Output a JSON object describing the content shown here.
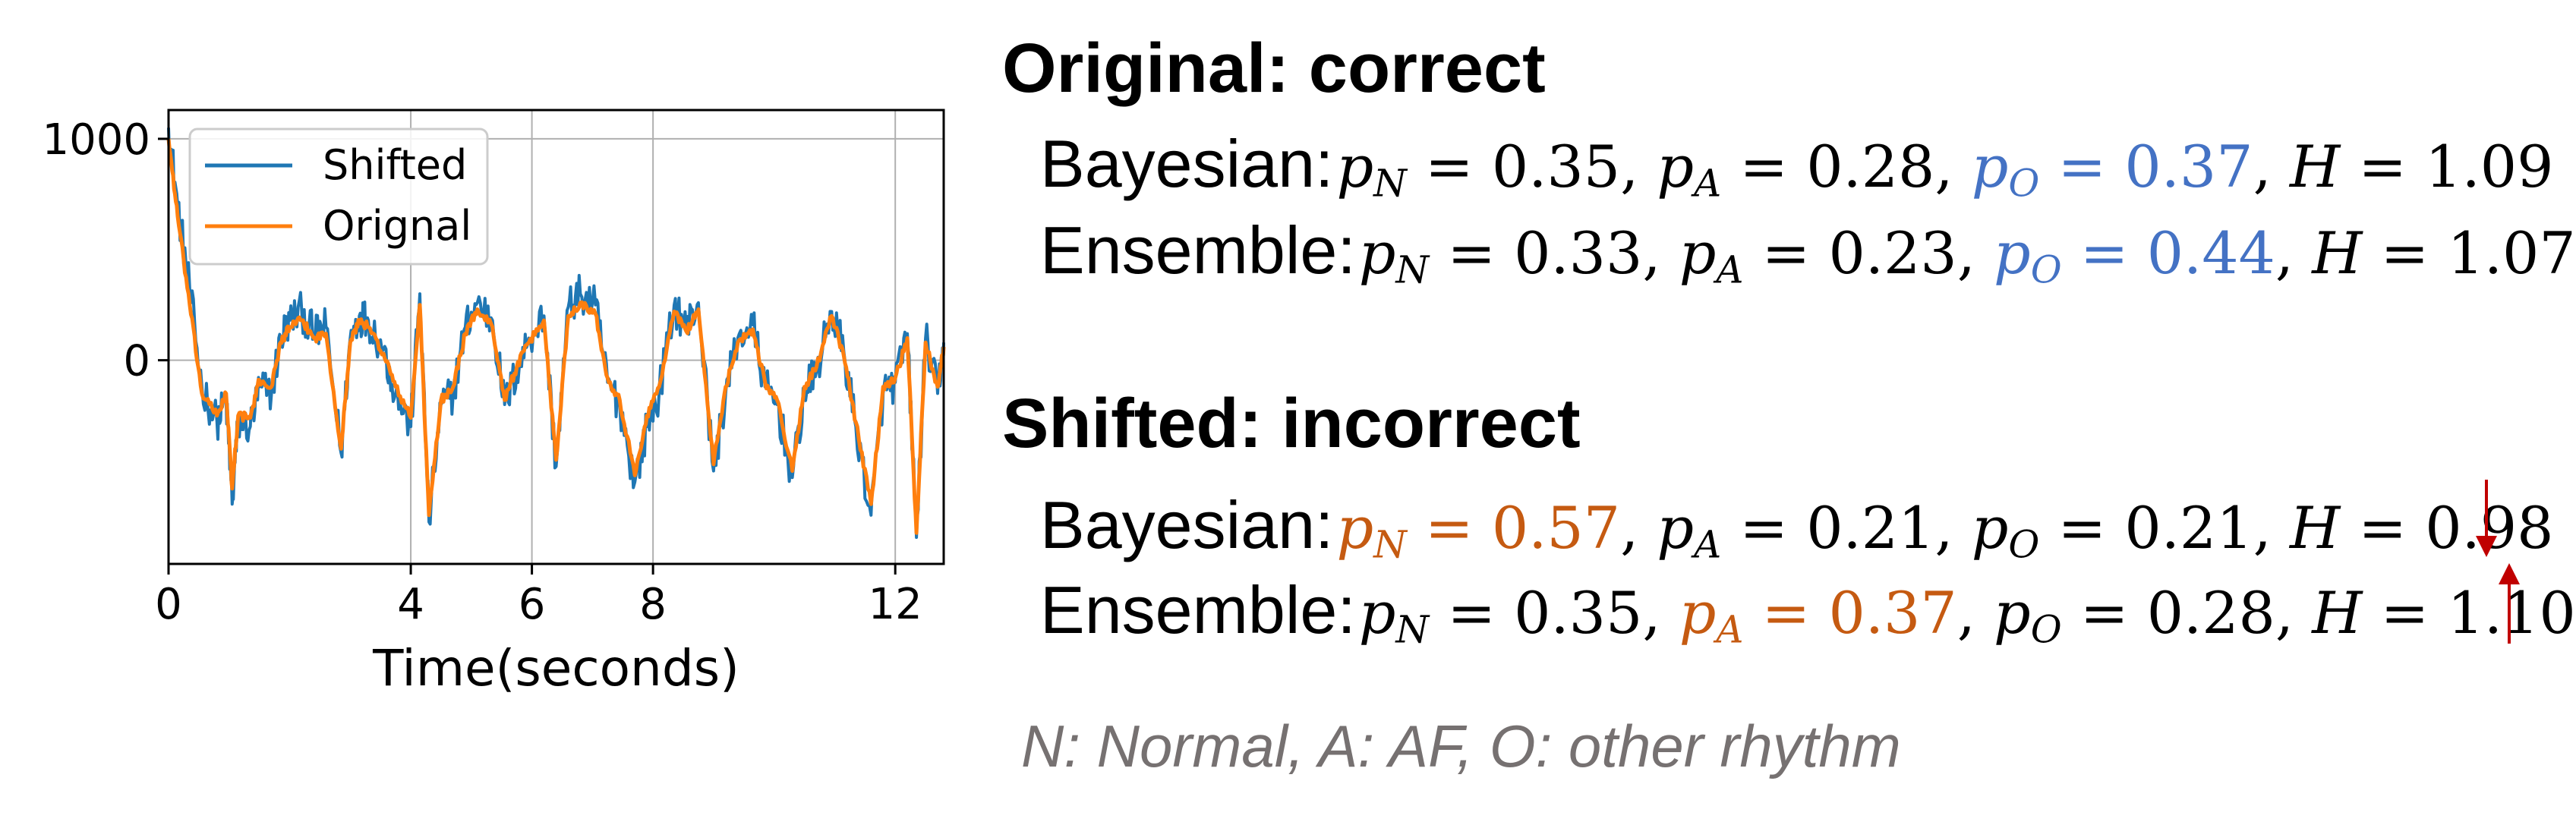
{
  "chart_data": {
    "type": "line",
    "xlabel": "Time(seconds)",
    "ylabel": "",
    "xlim": [
      0,
      12.8
    ],
    "ylim": [
      -920,
      1130
    ],
    "xticks": [
      0,
      4,
      6,
      8,
      12
    ],
    "xtick_labels": [
      "0",
      "4",
      "6",
      "8",
      "12"
    ],
    "yticks": [
      0,
      1000
    ],
    "ytick_labels": [
      "0",
      "1000"
    ],
    "grid": true,
    "legend_placement": "top-left",
    "series": [
      {
        "name": "Shifted",
        "color": "#1f77b4",
        "noise": 90,
        "x": [
          0,
          0.15,
          0.35,
          0.55,
          0.8,
          0.95,
          1.05,
          1.15,
          1.35,
          1.5,
          1.7,
          1.85,
          2.0,
          2.2,
          2.4,
          2.6,
          2.85,
          3.0,
          3.15,
          3.3,
          3.55,
          3.75,
          4.0,
          4.15,
          4.3,
          4.5,
          4.7,
          4.9,
          5.1,
          5.35,
          5.55,
          5.75,
          5.95,
          6.2,
          6.4,
          6.6,
          6.8,
          7.05,
          7.25,
          7.45,
          7.7,
          7.9,
          8.1,
          8.35,
          8.55,
          8.75,
          9.0,
          9.2,
          9.4,
          9.65,
          9.85,
          10.05,
          10.3,
          10.5,
          10.7,
          10.95,
          11.15,
          11.35,
          11.6,
          11.8,
          12.0,
          12.2,
          12.35,
          12.5,
          12.7,
          12.8
        ],
        "y": [
          1050,
          700,
          320,
          -120,
          -280,
          -180,
          -650,
          -280,
          -300,
          -120,
          -150,
          100,
          180,
          220,
          120,
          150,
          -420,
          100,
          200,
          180,
          50,
          -150,
          -300,
          300,
          -730,
          -200,
          -150,
          150,
          260,
          180,
          -200,
          -50,
          100,
          200,
          -480,
          240,
          300,
          250,
          -100,
          -200,
          -550,
          -300,
          -150,
          250,
          150,
          260,
          -500,
          -150,
          100,
          160,
          -120,
          -200,
          -530,
          -150,
          -50,
          220,
          40,
          -300,
          -700,
          -150,
          -100,
          120,
          -800,
          100,
          -150,
          80
        ]
      },
      {
        "name": "Orignal",
        "color": "#ff7f0e",
        "noise": 20,
        "x": [
          0,
          0.15,
          0.35,
          0.55,
          0.8,
          0.95,
          1.05,
          1.15,
          1.35,
          1.5,
          1.7,
          1.85,
          2.0,
          2.2,
          2.4,
          2.6,
          2.85,
          3.0,
          3.15,
          3.3,
          3.55,
          3.75,
          4.0,
          4.15,
          4.3,
          4.5,
          4.7,
          4.9,
          5.1,
          5.35,
          5.55,
          5.75,
          5.95,
          6.2,
          6.4,
          6.6,
          6.8,
          7.05,
          7.25,
          7.45,
          7.7,
          7.9,
          8.1,
          8.35,
          8.55,
          8.75,
          9.0,
          9.2,
          9.4,
          9.65,
          9.85,
          10.05,
          10.3,
          10.5,
          10.7,
          10.95,
          11.15,
          11.35,
          11.6,
          11.8,
          12.0,
          12.2,
          12.35,
          12.5,
          12.7,
          12.8
        ],
        "y": [
          1000,
          650,
          250,
          -150,
          -250,
          -150,
          -580,
          -250,
          -260,
          -90,
          -120,
          80,
          150,
          180,
          100,
          120,
          -400,
          80,
          180,
          150,
          30,
          -120,
          -260,
          250,
          -700,
          -180,
          -120,
          120,
          230,
          150,
          -180,
          -30,
          80,
          180,
          -450,
          200,
          260,
          210,
          -80,
          -180,
          -520,
          -250,
          -120,
          220,
          130,
          230,
          -470,
          -120,
          80,
          140,
          -100,
          -180,
          -500,
          -120,
          -30,
          200,
          20,
          -280,
          -650,
          -120,
          -80,
          100,
          -780,
          80,
          -120,
          60
        ]
      }
    ]
  },
  "results": {
    "original": {
      "heading": "Original: correct",
      "rows": [
        {
          "method": "Bayesian:",
          "pN": "0.35",
          "pA": "0.28",
          "pO": "0.37",
          "H": "1.09",
          "highlight": "O",
          "highlight_color": "#4472c4",
          "arrow": ""
        },
        {
          "method": "Ensemble:",
          "pN": "0.33",
          "pA": "0.23",
          "pO": "0.44",
          "H": "1.07",
          "highlight": "O",
          "highlight_color": "#4472c4",
          "arrow": ""
        }
      ]
    },
    "shifted": {
      "heading": "Shifted: incorrect",
      "rows": [
        {
          "method": "Bayesian:",
          "pN": "0.57",
          "pA": "0.21",
          "pO": "0.21",
          "H": "0.98",
          "highlight": "N",
          "highlight_color": "#c55a11",
          "arrow": "down"
        },
        {
          "method": "Ensemble:",
          "pN": "0.35",
          "pA": "0.37",
          "pO": "0.28",
          "H": "1.10",
          "highlight": "A",
          "highlight_color": "#c55a11",
          "arrow": "up"
        }
      ]
    },
    "arrow_color": "#c00000"
  },
  "note": "N: Normal, A: AF, O: other rhythm"
}
